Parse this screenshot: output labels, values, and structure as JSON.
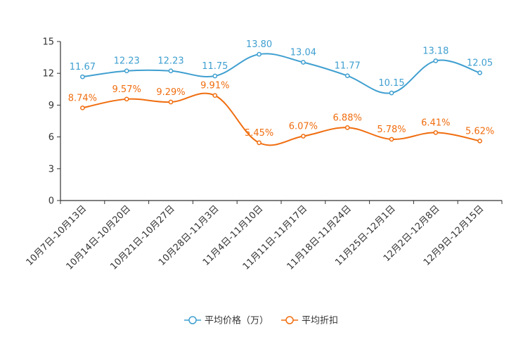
{
  "chart_data": {
    "type": "line",
    "title": "",
    "xlabel": "",
    "ylabel": "",
    "ylim": [
      0,
      15
    ],
    "yticks": [
      0,
      3,
      6,
      9,
      12,
      15
    ],
    "grid": false,
    "legend_position": "bottom-center",
    "categories": [
      "10月7日-10月13日",
      "10月14日-10月20日",
      "10月21日-10月27日",
      "10月28日-11月3日",
      "11月4日-11月10日",
      "11月11日-11月17日",
      "11月18日-11月24日",
      "11月25日-12月1日",
      "12月2日-12月8日",
      "12月9日-12月15日"
    ],
    "series": [
      {
        "name": "平均价格（万）",
        "color": "#3f9fd0",
        "values": [
          11.67,
          12.23,
          12.23,
          11.75,
          13.8,
          13.04,
          11.77,
          10.15,
          13.18,
          12.05
        ],
        "labels": [
          "11.67",
          "12.23",
          "12.23",
          "11.75",
          "13.80",
          "13.04",
          "11.77",
          "10.15",
          "13.18",
          "12.05"
        ]
      },
      {
        "name": "平均折扣",
        "color": "#f06d0f",
        "values": [
          8.74,
          9.57,
          9.29,
          9.91,
          5.45,
          6.07,
          6.88,
          5.78,
          6.41,
          5.62
        ],
        "labels": [
          "8.74%",
          "9.57%",
          "9.29%",
          "9.91%",
          "5.45%",
          "6.07%",
          "6.88%",
          "5.78%",
          "6.41%",
          "5.62%"
        ]
      }
    ]
  }
}
